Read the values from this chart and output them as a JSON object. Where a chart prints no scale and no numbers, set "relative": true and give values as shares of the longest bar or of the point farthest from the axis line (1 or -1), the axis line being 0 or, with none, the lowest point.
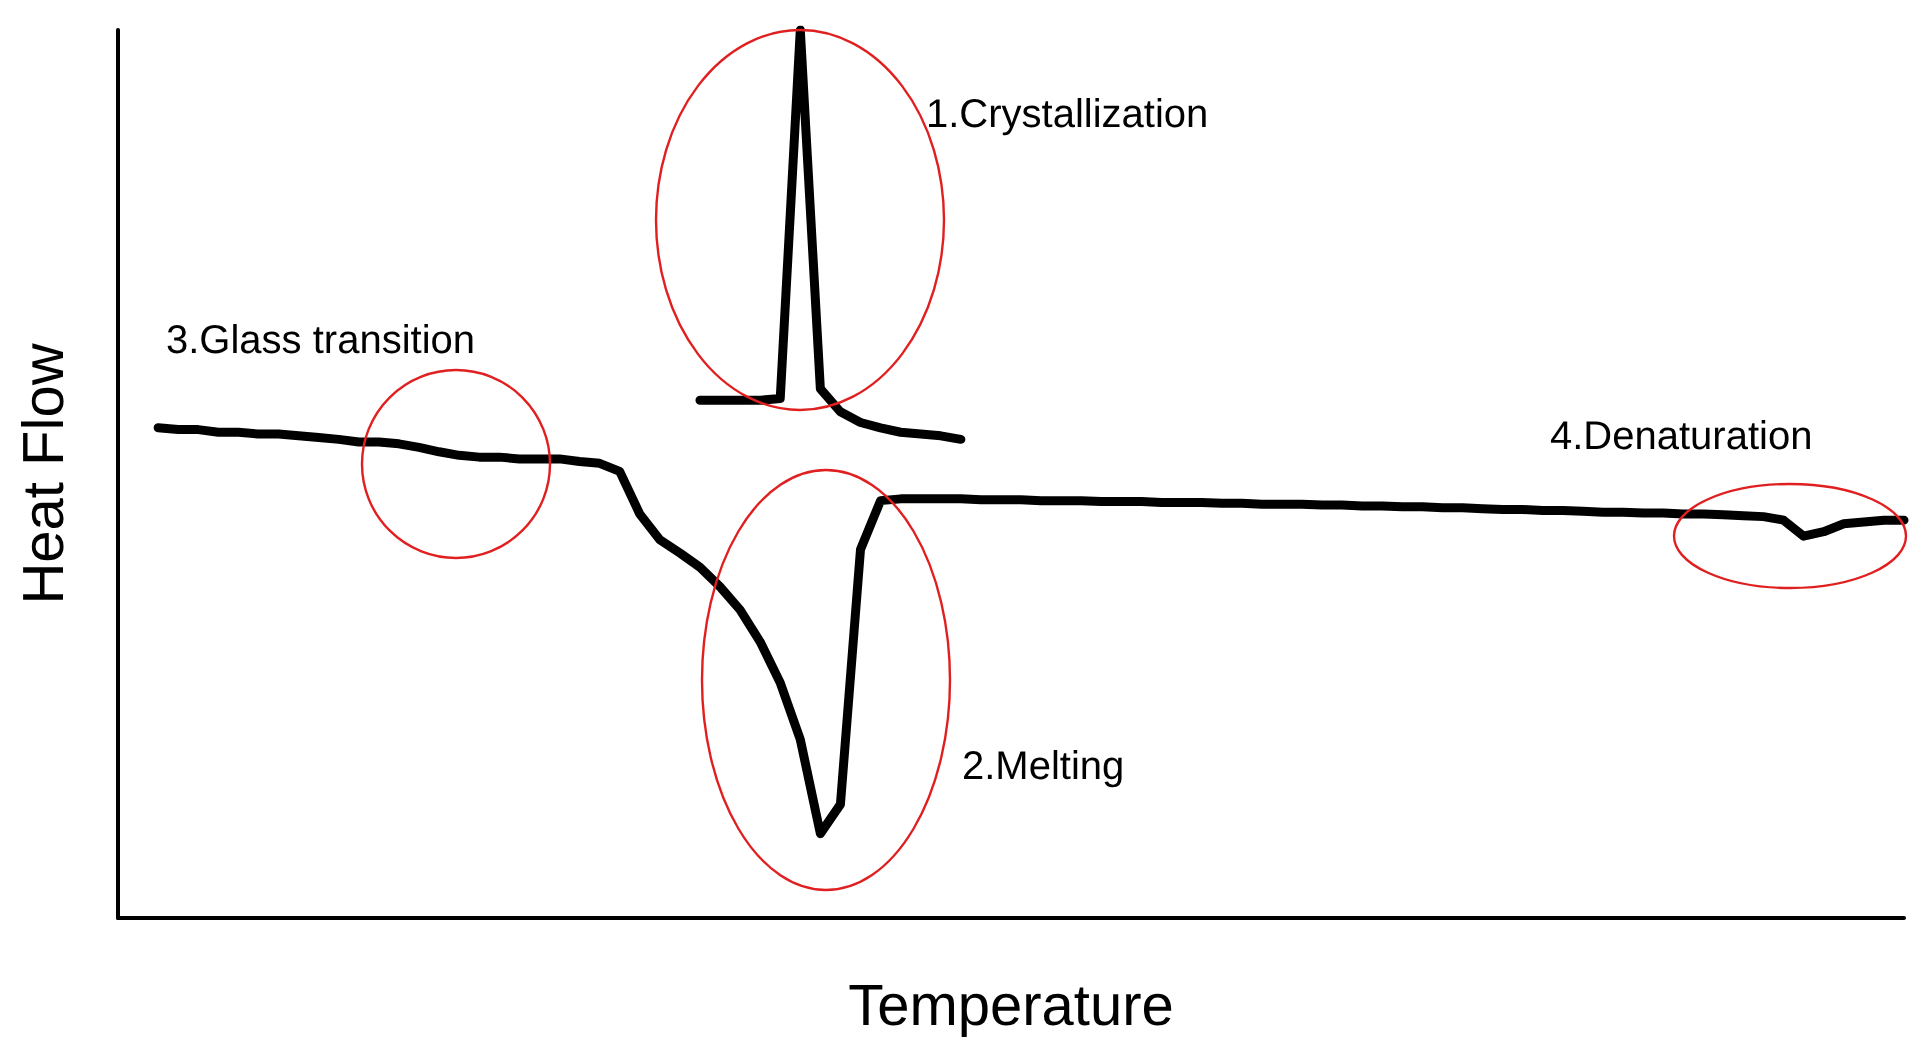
{
  "chart_data": {
    "type": "line",
    "relative": true,
    "xlabel": "Temperature",
    "ylabel": "Heat Flow",
    "marker": "none",
    "line_style": "solid",
    "categories": [
      null,
      null,
      null,
      null,
      null,
      null,
      null,
      null,
      null,
      null,
      null,
      null,
      null,
      null,
      null,
      null,
      null,
      null,
      null,
      null,
      null,
      null,
      null,
      null,
      null,
      null,
      null,
      null,
      null,
      null,
      null,
      null,
      null,
      null,
      null,
      null,
      null,
      null,
      null,
      null,
      null,
      null,
      null,
      null,
      null,
      null,
      null,
      null,
      null,
      null,
      null,
      null,
      null,
      null,
      null,
      null,
      null,
      null,
      null,
      null,
      null,
      null,
      null,
      null,
      null,
      null,
      null,
      null,
      null,
      null,
      null,
      null,
      null,
      null,
      null,
      null,
      null,
      null,
      null,
      null,
      null,
      null,
      null,
      null,
      null,
      null,
      null,
      null,
      null,
      null
    ],
    "series": [
      {
        "color": "#000000",
        "values": [
          null,
          null,
          0.552,
          0.55,
          0.55,
          0.547,
          0.547,
          0.545,
          0.545,
          0.543,
          0.541,
          0.539,
          0.536,
          0.536,
          0.534,
          0.53,
          0.525,
          0.521,
          0.519,
          0.519,
          0.517,
          0.517,
          0.517,
          0.514,
          0.512,
          0.503,
          0.455,
          0.426,
          0.411,
          0.395,
          0.373,
          0.347,
          0.311,
          0.265,
          0.201,
          0.095,
          0.128,
          0.415,
          0.47,
          0.472,
          0.472,
          0.472,
          0.472,
          0.471,
          0.471,
          0.471,
          0.47,
          0.47,
          0.47,
          0.469,
          0.469,
          0.469,
          0.468,
          0.468,
          0.468,
          0.467,
          0.467,
          0.466,
          0.466,
          0.466,
          0.465,
          0.465,
          0.464,
          0.464,
          0.463,
          0.463,
          0.462,
          0.462,
          0.461,
          0.46,
          0.46,
          0.459,
          0.459,
          0.458,
          0.457,
          0.457,
          0.456,
          0.456,
          0.455,
          0.455,
          0.454,
          0.453,
          0.452,
          0.448,
          0.43,
          0.435,
          0.444,
          0.446,
          0.448,
          0.448
        ]
      },
      {
        "color": "#000000",
        "values": [
          null,
          null,
          null,
          null,
          null,
          null,
          null,
          null,
          null,
          null,
          null,
          null,
          null,
          null,
          null,
          null,
          null,
          null,
          null,
          null,
          null,
          null,
          null,
          null,
          null,
          null,
          null,
          null,
          null,
          0.583,
          0.583,
          0.583,
          0.583,
          0.585,
          1,
          0.596,
          0.57,
          0.558,
          0.552,
          0.547,
          0.545,
          0.543,
          0.539,
          null,
          null,
          null,
          null,
          null,
          null,
          null,
          null,
          null,
          null,
          null,
          null,
          null,
          null,
          null,
          null,
          null,
          null,
          null,
          null,
          null,
          null,
          null,
          null,
          null,
          null,
          null,
          null,
          null,
          null,
          null,
          null,
          null,
          null,
          null,
          null,
          null,
          null,
          null,
          null,
          null,
          null,
          null,
          null,
          null,
          null,
          null
        ]
      }
    ],
    "annotations": [
      "1.Crystallization",
      "2.Melting",
      "3.Glass transition",
      "4.Denaturation"
    ]
  }
}
